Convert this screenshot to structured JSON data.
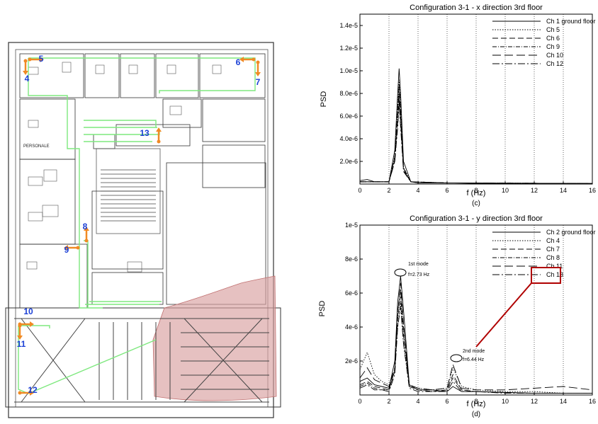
{
  "floor_plan": {
    "room_label": "PERSONALE",
    "channels": [
      "5",
      "4",
      "6",
      "7",
      "13",
      "8",
      "9",
      "10",
      "11",
      "12"
    ],
    "colors": {
      "cable": "#7ee87e",
      "arrow": "#f08a24",
      "label": "#1a3fd6",
      "damaged": "#d9a0a0"
    }
  },
  "charts": [
    {
      "title": "Configuration 3-1 - x direction  3rd floor",
      "ylabel": "PSD",
      "xlabel": "f (Hz)",
      "caption": "(c)",
      "xticks": [
        "0",
        "2",
        "4",
        "6",
        "8",
        "10",
        "12",
        "14",
        "16"
      ],
      "yticks": [
        "2.0e-6",
        "4.0e-6",
        "6.0e-6",
        "8.0e-6",
        "1.0e-5",
        "1.2e-5",
        "1.4e-5"
      ],
      "legend": [
        "Ch 1 ground floor",
        "Ch 5",
        "Ch 6",
        "Ch 9",
        "Ch 10",
        "Ch 12"
      ]
    },
    {
      "title": "Configuration 3-1 - y direction  3rd floor",
      "ylabel": "PSD",
      "xlabel": "f (Hz)",
      "caption": "(d)",
      "xticks": [
        "0",
        "2",
        "4",
        "6",
        "8",
        "10",
        "12",
        "14",
        "16"
      ],
      "yticks": [
        "2e-6",
        "4e-6",
        "6e-6",
        "8e-6",
        "1e-5"
      ],
      "legend": [
        "Ch 2 ground floor",
        "Ch 4",
        "Ch 7",
        "Ch 8",
        "Ch 11",
        "Ch 13"
      ],
      "annotations": {
        "mode1_name": "1st mode",
        "mode1_freq": "f=2.73 Hz",
        "mode2_name": "2nd mode",
        "mode2_freq": "f=6.44 Hz"
      },
      "highlight_color": "#b00000"
    }
  ],
  "chart_data": [
    {
      "type": "line",
      "title": "Configuration 3-1 - x direction  3rd floor",
      "xlabel": "f (Hz)",
      "ylabel": "PSD",
      "xlim": [
        0,
        16
      ],
      "ylim": [
        0,
        1.5e-05
      ],
      "grid": "vertical dotted",
      "legend_position": "top-right",
      "series": [
        {
          "name": "Ch 1 ground floor",
          "x": [
            0,
            0.5,
            1,
            2,
            2.4,
            2.6,
            2.7,
            2.8,
            3.0,
            3.5,
            4,
            6,
            8,
            12,
            16
          ],
          "y": [
            3e-07,
            4e-07,
            2e-07,
            2e-07,
            3e-06,
            8e-06,
            1.02e-05,
            8e-06,
            2e-06,
            2e-07,
            1e-07,
            1e-07,
            5e-08,
            5e-08,
            5e-08
          ]
        },
        {
          "name": "Ch 5",
          "x": [
            0,
            1,
            2,
            2.4,
            2.6,
            2.7,
            2.8,
            3.0,
            3.5,
            6,
            16
          ],
          "y": [
            2e-07,
            2e-07,
            2e-07,
            2.5e-06,
            7e-06,
            9.2e-06,
            7e-06,
            1.5e-06,
            2e-07,
            1e-07,
            5e-08
          ]
        },
        {
          "name": "Ch 6",
          "x": [
            0,
            1,
            2,
            2.4,
            2.6,
            2.7,
            2.8,
            3.0,
            3.5,
            6,
            16
          ],
          "y": [
            2e-07,
            2e-07,
            2e-07,
            2.4e-06,
            6.5e-06,
            8.8e-06,
            6.5e-06,
            1.4e-06,
            2e-07,
            1e-07,
            5e-08
          ]
        },
        {
          "name": "Ch 9",
          "x": [
            0,
            1,
            2,
            2.4,
            2.6,
            2.7,
            2.8,
            3.0,
            3.5,
            6,
            16
          ],
          "y": [
            2e-07,
            2e-07,
            2e-07,
            2.2e-06,
            6e-06,
            8.3e-06,
            6e-06,
            1.3e-06,
            2e-07,
            1e-07,
            5e-08
          ]
        },
        {
          "name": "Ch 10",
          "x": [
            0,
            1,
            2,
            2.4,
            2.6,
            2.7,
            2.8,
            3.0,
            3.5,
            6,
            16
          ],
          "y": [
            2e-07,
            2e-07,
            2e-07,
            2e-06,
            5.5e-06,
            7.8e-06,
            5.5e-06,
            1.2e-06,
            2e-07,
            1e-07,
            5e-08
          ]
        },
        {
          "name": "Ch 12",
          "x": [
            0,
            1,
            2,
            2.4,
            2.6,
            2.7,
            2.8,
            3.0,
            3.5,
            6,
            16
          ],
          "y": [
            2e-07,
            2e-07,
            2e-07,
            2e-06,
            5e-06,
            7.2e-06,
            5e-06,
            1.1e-06,
            2e-07,
            1e-07,
            5e-08
          ]
        }
      ]
    },
    {
      "type": "line",
      "title": "Configuration 3-1 - y direction  3rd floor",
      "xlabel": "f (Hz)",
      "ylabel": "PSD",
      "xlim": [
        0,
        16
      ],
      "ylim": [
        0,
        1e-05
      ],
      "grid": "vertical dotted",
      "legend_position": "top-right",
      "series": [
        {
          "name": "Ch 2 ground floor",
          "x": [
            0,
            0.5,
            1,
            1.5,
            2,
            2.4,
            2.6,
            2.8,
            3.0,
            3.4,
            4,
            5,
            6,
            6.4,
            7,
            8,
            10,
            12,
            14,
            16
          ],
          "y": [
            8e-07,
            1e-06,
            6e-07,
            5e-07,
            4e-07,
            2e-06,
            5.5e-06,
            7e-06,
            5e-06,
            6e-07,
            3e-07,
            3e-07,
            2e-07,
            5e-07,
            2e-07,
            2e-07,
            1.5e-07,
            1e-07,
            1e-07,
            1e-07
          ]
        },
        {
          "name": "Ch 4",
          "x": [
            0,
            0.5,
            1,
            1.5,
            2,
            2.4,
            2.6,
            2.8,
            3.0,
            3.4,
            4,
            5,
            6,
            6.4,
            7,
            8,
            10,
            12,
            14,
            16
          ],
          "y": [
            1.5e-06,
            2.5e-06,
            1.2e-06,
            8e-07,
            6e-07,
            1.5e-06,
            4e-06,
            5.5e-06,
            3e-06,
            6e-07,
            4e-07,
            3e-07,
            4e-07,
            1.6e-06,
            5e-07,
            3e-07,
            2e-07,
            2e-07,
            1e-07,
            1e-07
          ]
        },
        {
          "name": "Ch 7",
          "x": [
            0,
            0.5,
            1,
            1.5,
            2,
            2.4,
            2.6,
            2.8,
            3.0,
            3.4,
            4,
            5,
            6,
            6.4,
            7,
            8,
            10,
            12,
            14,
            16
          ],
          "y": [
            6e-07,
            8e-07,
            5e-07,
            4e-07,
            3e-07,
            1.5e-06,
            5e-06,
            6.2e-06,
            4e-06,
            5e-07,
            3e-07,
            2e-07,
            3e-07,
            1.2e-06,
            3e-07,
            2e-07,
            1.5e-07,
            1e-07,
            1e-07,
            1e-07
          ]
        },
        {
          "name": "Ch 8",
          "x": [
            0,
            0.5,
            1,
            1.5,
            2,
            2.4,
            2.6,
            2.8,
            3.0,
            3.4,
            4,
            5,
            6,
            6.4,
            7,
            8,
            10,
            12,
            14,
            16
          ],
          "y": [
            5e-07,
            7e-07,
            4e-07,
            3e-07,
            3e-07,
            1.4e-06,
            4.5e-06,
            5.8e-06,
            3.5e-06,
            5e-07,
            3e-07,
            2e-07,
            3e-07,
            1e-06,
            3e-07,
            2e-07,
            1.5e-07,
            1e-07,
            1e-07,
            1e-07
          ]
        },
        {
          "name": "Ch 11",
          "x": [
            0,
            0.5,
            1,
            1.5,
            2,
            2.4,
            2.6,
            2.8,
            3.0,
            3.4,
            4,
            5,
            6,
            6.4,
            7,
            8,
            10,
            12,
            14,
            16
          ],
          "y": [
            1e-06,
            1.6e-06,
            9e-07,
            7e-07,
            5e-07,
            1.6e-06,
            4.8e-06,
            6.6e-06,
            4.2e-06,
            6e-07,
            4e-07,
            3e-07,
            4e-07,
            1.8e-06,
            4e-07,
            3e-07,
            3e-07,
            4e-07,
            5e-07,
            3e-07
          ]
        },
        {
          "name": "Ch 13",
          "x": [
            0,
            0.5,
            1,
            1.5,
            2,
            2.4,
            2.6,
            2.8,
            3.0,
            3.4,
            4,
            5,
            6,
            6.4,
            7,
            8,
            10,
            12,
            14,
            16
          ],
          "y": [
            4e-07,
            6e-07,
            3e-07,
            3e-07,
            2e-07,
            1.2e-06,
            4e-06,
            5.2e-06,
            3e-06,
            4e-07,
            2e-07,
            2e-07,
            2e-07,
            8e-07,
            2e-07,
            2e-07,
            1e-07,
            1e-07,
            1e-07,
            1e-07
          ]
        }
      ]
    }
  ]
}
